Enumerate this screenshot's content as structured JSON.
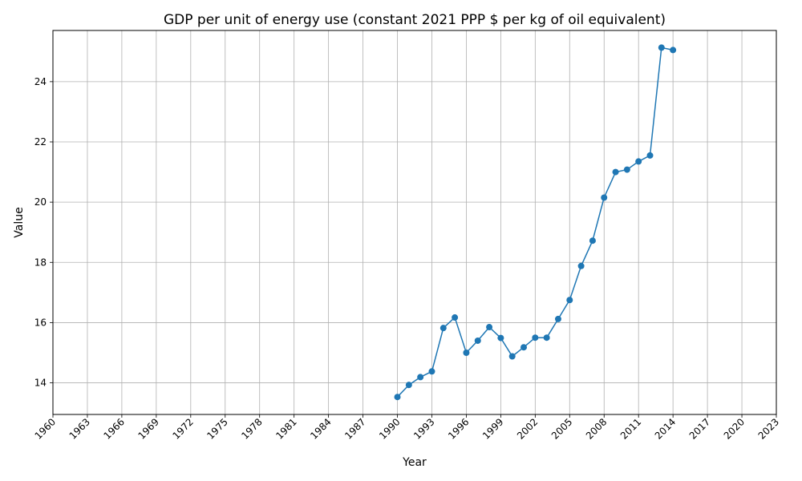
{
  "chart_data": {
    "type": "line",
    "title": "GDP per unit of energy use (constant 2021 PPP $ per kg of oil equivalent)",
    "xlabel": "Year",
    "ylabel": "Value",
    "xlim": [
      1960,
      2023
    ],
    "ylim": [
      12.95,
      25.7
    ],
    "grid": true,
    "x_ticks": [
      "1960",
      "1963",
      "1966",
      "1969",
      "1972",
      "1975",
      "1978",
      "1981",
      "1984",
      "1987",
      "1990",
      "1993",
      "1996",
      "1999",
      "2002",
      "2005",
      "2008",
      "2011",
      "2014",
      "2017",
      "2020",
      "2023"
    ],
    "y_ticks": [
      "14",
      "16",
      "18",
      "20",
      "22",
      "24"
    ],
    "series": [
      {
        "color": "#1f77b4",
        "marker": "circle",
        "x": [
          1990,
          1991,
          1992,
          1993,
          1994,
          1995,
          1996,
          1997,
          1998,
          1999,
          2000,
          2001,
          2002,
          2003,
          2004,
          2005,
          2006,
          2007,
          2008,
          2009,
          2010,
          2011,
          2012,
          2013,
          2014
        ],
        "y": [
          13.53,
          13.93,
          14.19,
          14.38,
          15.82,
          16.17,
          15.0,
          15.4,
          15.85,
          15.49,
          14.88,
          15.18,
          15.5,
          15.5,
          16.12,
          16.75,
          17.88,
          18.72,
          20.15,
          21.0,
          21.08,
          21.35,
          21.55,
          25.13,
          25.05
        ]
      }
    ]
  }
}
